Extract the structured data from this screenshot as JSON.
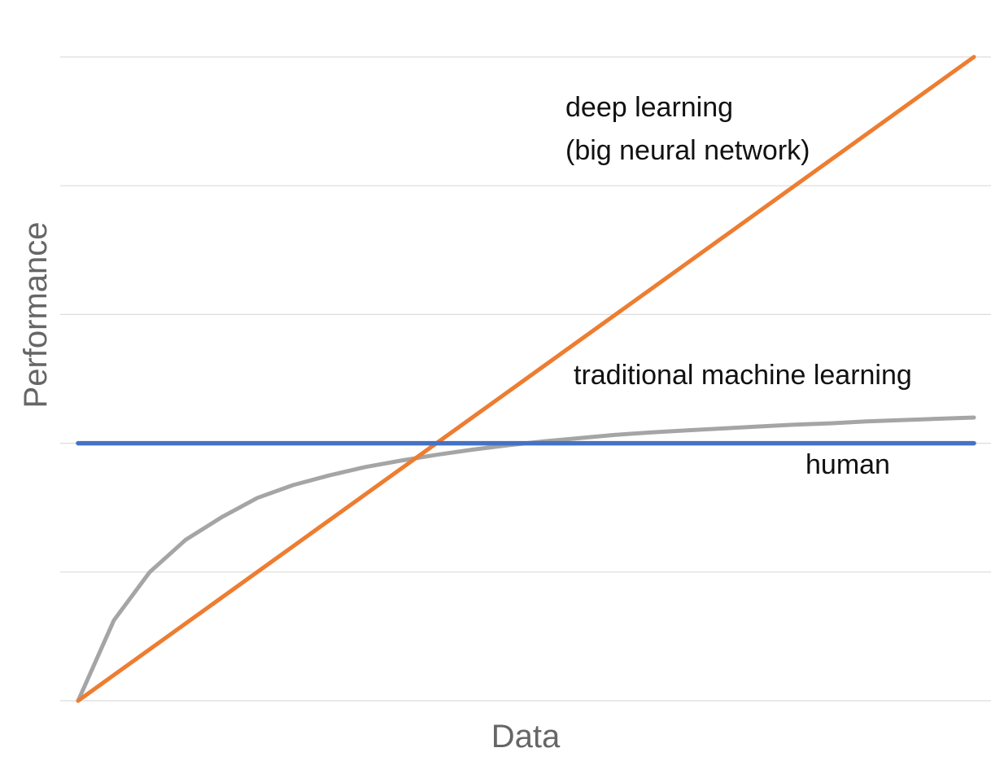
{
  "chart_data": {
    "type": "line",
    "title": "",
    "xlabel": "Data",
    "ylabel": "Performance",
    "xlim": [
      0,
      25
    ],
    "ylim": [
      0,
      100
    ],
    "grid": true,
    "y_gridlines": [
      0,
      20,
      40,
      60,
      80,
      100
    ],
    "series": [
      {
        "name": "deep learning (big neural network)",
        "color": "#ED7D31",
        "x": [
          0,
          25
        ],
        "values": [
          0,
          100
        ]
      },
      {
        "name": "traditional machine learning",
        "color": "#A5A5A5",
        "x": [
          0,
          1,
          2,
          3,
          4,
          5,
          6,
          7,
          8,
          9,
          10,
          11,
          12,
          13,
          14,
          15,
          16,
          17,
          18,
          19,
          20,
          21,
          22,
          23,
          24,
          25
        ],
        "values": [
          0,
          12.5,
          20,
          25,
          28.5,
          31.5,
          33.5,
          35,
          36.3,
          37.3,
          38.2,
          39,
          39.7,
          40.3,
          40.8,
          41.3,
          41.7,
          42,
          42.3,
          42.6,
          42.9,
          43.1,
          43.4,
          43.6,
          43.8,
          44
        ]
      },
      {
        "name": "human",
        "color": "#4472C4",
        "x": [
          0,
          25
        ],
        "values": [
          40,
          40
        ]
      }
    ],
    "annotations": [
      {
        "series": 0,
        "lines": [
          "deep learning",
          "(big neural network)"
        ]
      },
      {
        "series": 1,
        "lines": [
          "traditional machine learning"
        ]
      },
      {
        "series": 2,
        "lines": [
          "human"
        ]
      }
    ]
  }
}
